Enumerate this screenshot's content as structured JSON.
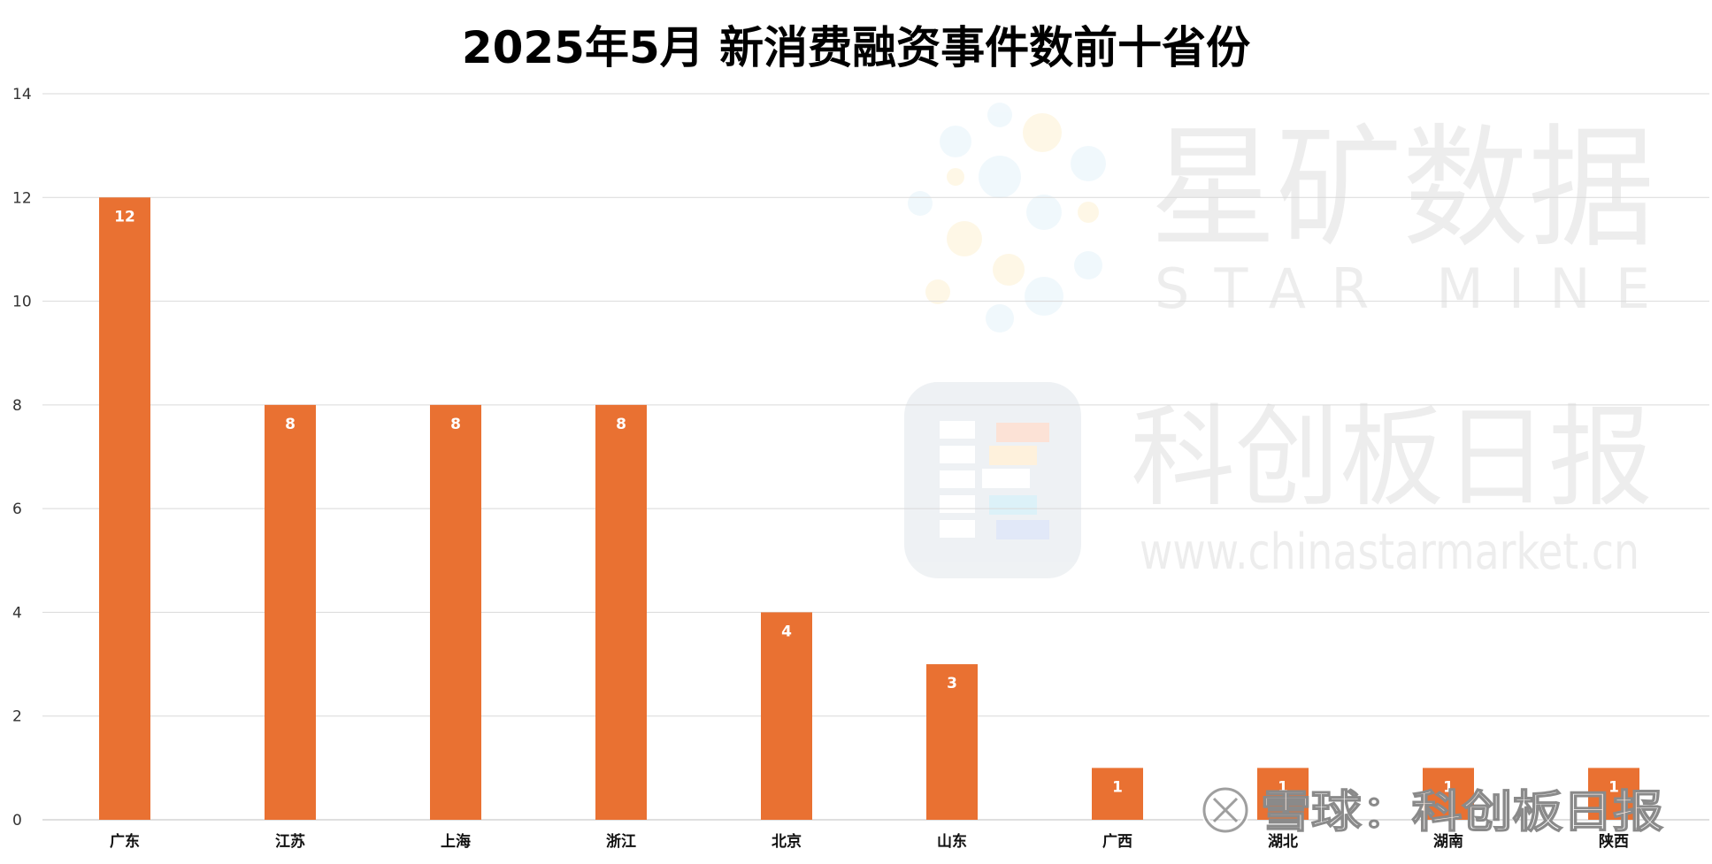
{
  "chart_data": {
    "type": "bar",
    "title": "2025年5月 新消费融资事件数前十省份",
    "categories": [
      "广东",
      "江苏",
      "上海",
      "浙江",
      "北京",
      "山东",
      "广西",
      "湖北",
      "湖南",
      "陕西"
    ],
    "values": [
      12,
      8,
      8,
      8,
      4,
      3,
      1,
      1,
      1,
      1
    ],
    "xlabel": "",
    "ylabel": "",
    "ylim": [
      0,
      14
    ],
    "yticks": [
      0,
      2,
      4,
      6,
      8,
      10,
      12,
      14
    ],
    "grid": true,
    "legend": "none",
    "bar_color": "#E97132",
    "data_labels": true
  },
  "watermark": {
    "brand_cn": "星矿数据",
    "brand_en": "STAR MINE",
    "publisher": "科创板日报",
    "url": "www.chinastarmarket.cn",
    "snowball": "雪球：科创板日报"
  }
}
